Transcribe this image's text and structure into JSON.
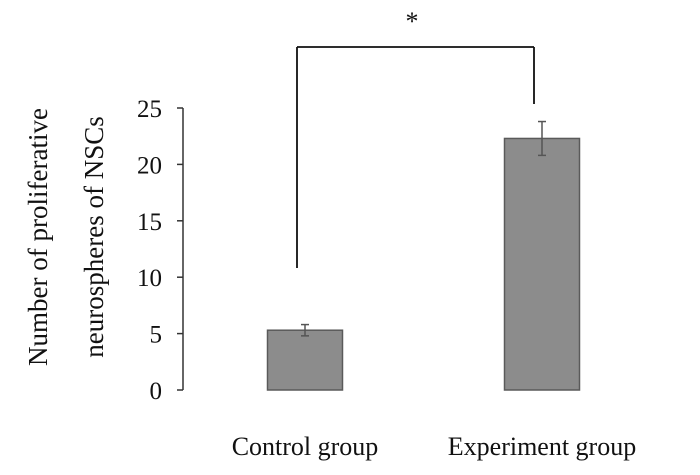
{
  "chart_data": {
    "type": "bar",
    "title": "",
    "xlabel": "",
    "ylabel_lines": [
      "Number of proliferative",
      "neurospheres of NSCs"
    ],
    "categories": [
      "Control group",
      "Experiment group"
    ],
    "values": [
      5.3,
      22.3
    ],
    "error": [
      0.5,
      1.5
    ],
    "ylim": [
      0,
      25
    ],
    "yticks": [
      0,
      5,
      10,
      15,
      20,
      25
    ],
    "grid": false,
    "legend": "none",
    "bar_color": "#8c8c8c",
    "bar_edge_color": "#5a5a5a",
    "significance": {
      "label": "*",
      "between": [
        0,
        1
      ]
    }
  }
}
